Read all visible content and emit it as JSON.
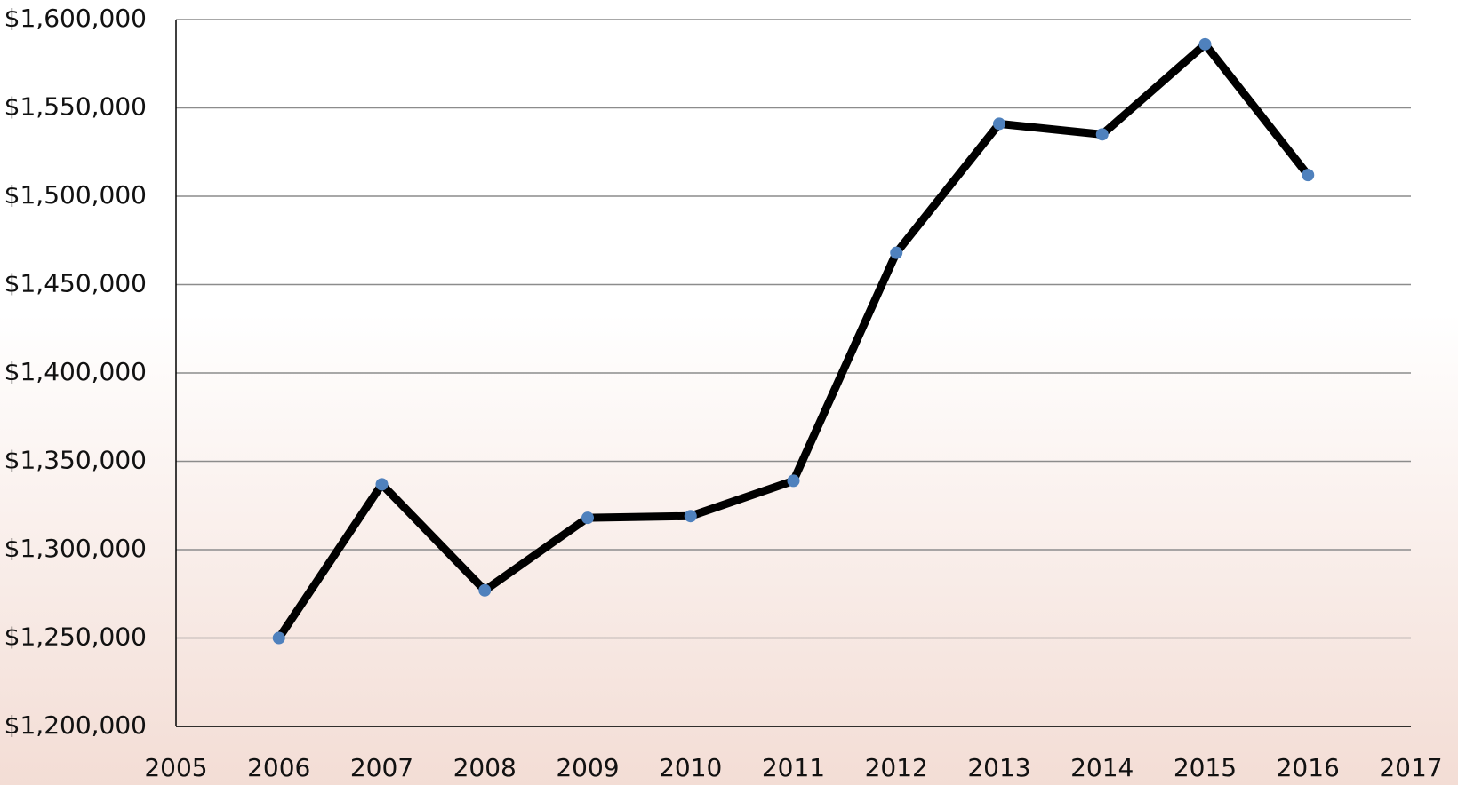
{
  "chart_data": {
    "type": "line",
    "x": [
      2006,
      2007,
      2008,
      2009,
      2010,
      2011,
      2012,
      2013,
      2014,
      2015,
      2016
    ],
    "values": [
      1250000,
      1337000,
      1277000,
      1318000,
      1319000,
      1339000,
      1468000,
      1541000,
      1535000,
      1586000,
      1512000
    ],
    "color": "#000000",
    "marker_color": "#4f81bd",
    "xlim": [
      2005,
      2017
    ],
    "xticks": [
      2005,
      2006,
      2007,
      2008,
      2009,
      2010,
      2011,
      2012,
      2013,
      2014,
      2015,
      2016,
      2017
    ],
    "ylim": [
      1200000,
      1600000
    ],
    "yticks": [
      {
        "value": 1200000,
        "label": "$1,200,000"
      },
      {
        "value": 1250000,
        "label": "$1,250,000"
      },
      {
        "value": 1300000,
        "label": "$1,300,000"
      },
      {
        "value": 1350000,
        "label": "$1,350,000"
      },
      {
        "value": 1400000,
        "label": "$1,400,000"
      },
      {
        "value": 1450000,
        "label": "$1,450,000"
      },
      {
        "value": 1500000,
        "label": "$1,500,000"
      },
      {
        "value": 1550000,
        "label": "$1,550,000"
      },
      {
        "value": 1600000,
        "label": "$1,600,000"
      }
    ],
    "grid": true
  }
}
